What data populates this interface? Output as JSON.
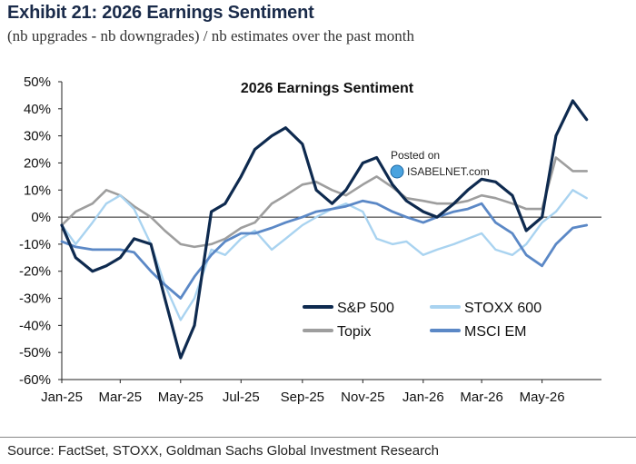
{
  "header": {
    "title": "Exhibit 21: 2026 Earnings Sentiment",
    "subtitle": "(nb upgrades - nb downgrades) / nb estimates over the past month"
  },
  "footer": {
    "source": "Source: FactSet, STOXX, Goldman Sachs Global Investment Research"
  },
  "watermark": {
    "line1": "Posted on",
    "line2": "ISABELNET.com"
  },
  "chart_data": {
    "type": "line",
    "title": "2026 Earnings Sentiment",
    "xlabel": "",
    "ylabel": "",
    "x_tick_labels": [
      "Jan-25",
      "Mar-25",
      "May-25",
      "Jul-25",
      "Sep-25",
      "Nov-25",
      "Jan-26",
      "Mar-26",
      "May-26"
    ],
    "y_tick_labels": [
      "50%",
      "40%",
      "30%",
      "20%",
      "10%",
      "0%",
      "-10%",
      "-20%",
      "-30%",
      "-40%",
      "-50%",
      "-60%"
    ],
    "ylim": [
      -60,
      50
    ],
    "xlim": [
      "2025-01-01",
      "2026-06-30"
    ],
    "grid": false,
    "legend_position": "bottom-right inside plot",
    "x": [
      "2025-01-01",
      "2025-01-15",
      "2025-02-01",
      "2025-02-15",
      "2025-03-01",
      "2025-03-15",
      "2025-04-01",
      "2025-04-15",
      "2025-05-01",
      "2025-05-15",
      "2025-06-01",
      "2025-06-15",
      "2025-07-01",
      "2025-07-15",
      "2025-08-01",
      "2025-08-15",
      "2025-09-01",
      "2025-09-15",
      "2025-10-01",
      "2025-10-15",
      "2025-11-01",
      "2025-11-15",
      "2025-12-01",
      "2025-12-15",
      "2026-01-01",
      "2026-01-15",
      "2026-02-01",
      "2026-02-15",
      "2026-03-01",
      "2026-03-15",
      "2026-04-01",
      "2026-04-15",
      "2026-05-01",
      "2026-05-15",
      "2026-06-01",
      "2026-06-15"
    ],
    "series": [
      {
        "name": "S&P 500",
        "color": "#0e2a4f",
        "width": 3.2,
        "values": [
          -3,
          -15,
          -20,
          -18,
          -15,
          -8,
          -10,
          -30,
          -52,
          -40,
          2,
          5,
          15,
          25,
          30,
          33,
          27,
          10,
          5,
          10,
          20,
          22,
          12,
          6,
          2,
          0,
          5,
          10,
          14,
          13,
          8,
          -5,
          0,
          30,
          43,
          36
        ]
      },
      {
        "name": "STOXX 600",
        "color": "#a9d3f0",
        "width": 2.4,
        "values": [
          -3,
          -10,
          -2,
          5,
          8,
          3,
          -10,
          -25,
          -38,
          -30,
          -12,
          -14,
          -8,
          -5,
          -12,
          -8,
          -3,
          0,
          3,
          5,
          2,
          -8,
          -10,
          -9,
          -14,
          -12,
          -10,
          -8,
          -6,
          -12,
          -14,
          -10,
          -2,
          2,
          10,
          7
        ]
      },
      {
        "name": "Topix",
        "color": "#9e9e9e",
        "width": 2.6,
        "values": [
          -3,
          2,
          5,
          10,
          8,
          4,
          0,
          -5,
          -10,
          -11,
          -10,
          -8,
          -4,
          -2,
          5,
          8,
          12,
          13,
          10,
          8,
          12,
          15,
          11,
          7,
          6,
          5,
          5,
          6,
          8,
          7,
          5,
          3,
          3,
          22,
          17,
          17
        ]
      },
      {
        "name": "MSCI EM",
        "color": "#5b88c6",
        "width": 2.8,
        "values": [
          -9,
          -11,
          -12,
          -12,
          -12,
          -13,
          -20,
          -25,
          -30,
          -22,
          -14,
          -9,
          -6,
          -6,
          -4,
          -2,
          0,
          2,
          3,
          4,
          6,
          5,
          2,
          0,
          -2,
          0,
          2,
          3,
          5,
          -2,
          -6,
          -14,
          -18,
          -10,
          -4,
          -3
        ]
      }
    ]
  }
}
